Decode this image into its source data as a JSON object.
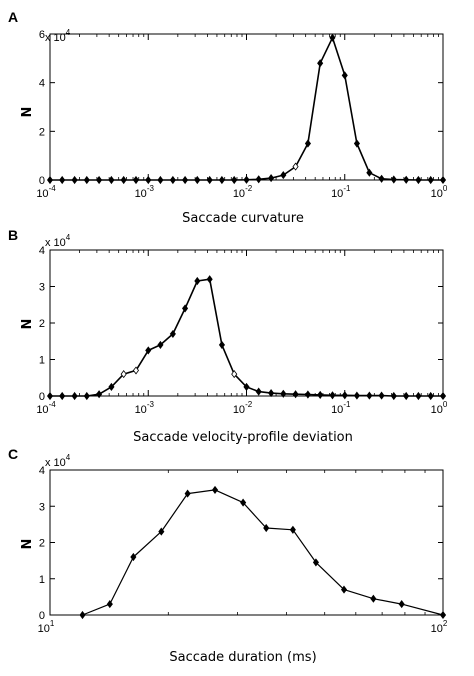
{
  "chart_data": [
    {
      "type": "line",
      "panel": "A",
      "xscale": "log",
      "xlim": [
        0.0001,
        1
      ],
      "ylim": [
        0,
        6
      ],
      "y_multiplier_label": "x 10",
      "y_multiplier_exp": "4",
      "xlabel": "Saccade curvature",
      "ylabel": "N",
      "x_tick_base": "10",
      "x_ticks": [
        {
          "v": 0.0001,
          "exp": "-4"
        },
        {
          "v": 0.001,
          "exp": "-3"
        },
        {
          "v": 0.01,
          "exp": "-2"
        },
        {
          "v": 0.1,
          "exp": "-1"
        },
        {
          "v": 1,
          "exp": "0"
        }
      ],
      "y_ticks": [
        {
          "v": 0,
          "label": "0"
        },
        {
          "v": 2,
          "label": "2"
        },
        {
          "v": 4,
          "label": "4"
        },
        {
          "v": 6,
          "label": "6"
        }
      ],
      "series": [
        {
          "x": [
            0.0001,
            0.000133,
            0.000178,
            0.000237,
            0.000316,
            0.000422,
            0.000562,
            0.00075,
            0.001,
            0.00133,
            0.00178,
            0.00237,
            0.00316,
            0.00422,
            0.00562,
            0.0075,
            0.01,
            0.0133,
            0.0178,
            0.0237,
            0.0316,
            0.0422,
            0.0562,
            0.075,
            0.1,
            0.133,
            0.178,
            0.237,
            0.316,
            0.422,
            0.562,
            0.75,
            1
          ],
          "y": [
            0,
            0,
            0,
            0,
            0,
            0,
            0,
            0,
            0,
            0,
            0,
            0,
            0,
            0,
            0,
            0,
            0.01,
            0.03,
            0.08,
            0.2,
            0.55,
            1.5,
            4.8,
            5.85,
            4.3,
            1.5,
            0.3,
            0.05,
            0.02,
            0.01,
            0,
            0,
            0
          ]
        }
      ]
    },
    {
      "type": "line",
      "panel": "B",
      "xscale": "log",
      "xlim": [
        0.0001,
        1
      ],
      "ylim": [
        0,
        4
      ],
      "y_multiplier_label": "x 10",
      "y_multiplier_exp": "4",
      "xlabel": "Saccade velocity-profile deviation",
      "ylabel": "N",
      "x_tick_base": "10",
      "x_ticks": [
        {
          "v": 0.0001,
          "exp": "-4"
        },
        {
          "v": 0.001,
          "exp": "-3"
        },
        {
          "v": 0.01,
          "exp": "-2"
        },
        {
          "v": 0.1,
          "exp": "-1"
        },
        {
          "v": 1,
          "exp": "0"
        }
      ],
      "y_ticks": [
        {
          "v": 0,
          "label": "0"
        },
        {
          "v": 1,
          "label": "1"
        },
        {
          "v": 2,
          "label": "2"
        },
        {
          "v": 3,
          "label": "3"
        },
        {
          "v": 4,
          "label": "4"
        }
      ],
      "series": [
        {
          "x": [
            0.0001,
            0.000133,
            0.000178,
            0.000237,
            0.000316,
            0.000422,
            0.000562,
            0.00075,
            0.001,
            0.00133,
            0.00178,
            0.00237,
            0.00316,
            0.00422,
            0.00562,
            0.0075,
            0.01,
            0.0133,
            0.0178,
            0.0237,
            0.0316,
            0.0422,
            0.0562,
            0.075,
            0.1,
            0.133,
            0.178,
            0.237,
            0.316,
            0.422,
            0.562,
            0.75,
            1
          ],
          "y": [
            0,
            0,
            0,
            0,
            0.05,
            0.25,
            0.6,
            0.7,
            1.25,
            1.4,
            1.7,
            2.4,
            3.15,
            3.2,
            1.4,
            0.6,
            0.25,
            0.12,
            0.08,
            0.06,
            0.05,
            0.04,
            0.03,
            0.02,
            0.02,
            0.01,
            0.01,
            0.01,
            0,
            0,
            0,
            0,
            0
          ]
        }
      ]
    },
    {
      "type": "line",
      "panel": "C",
      "xscale": "log",
      "xlim": [
        10,
        100
      ],
      "ylim": [
        0,
        4
      ],
      "y_multiplier_label": "x 10",
      "y_multiplier_exp": "4",
      "xlabel": "Saccade duration (ms)",
      "ylabel": "N",
      "x_tick_base": "10",
      "x_ticks": [
        {
          "v": 10,
          "exp": "1"
        },
        {
          "v": 100,
          "exp": "2"
        }
      ],
      "y_ticks": [
        {
          "v": 0,
          "label": "0"
        },
        {
          "v": 1,
          "label": "1"
        },
        {
          "v": 2,
          "label": "2"
        },
        {
          "v": 3,
          "label": "3"
        },
        {
          "v": 4,
          "label": "4"
        }
      ],
      "series": [
        {
          "x": [
            12.1,
            14.2,
            16.3,
            19.2,
            22.4,
            26.3,
            31.0,
            35.5,
            41.5,
            47.5,
            56.0,
            66.5,
            78.5,
            100
          ],
          "y": [
            0,
            0.3,
            1.6,
            2.3,
            3.35,
            3.45,
            3.1,
            2.4,
            2.35,
            1.45,
            0.7,
            0.45,
            0.3,
            0
          ]
        }
      ]
    }
  ]
}
